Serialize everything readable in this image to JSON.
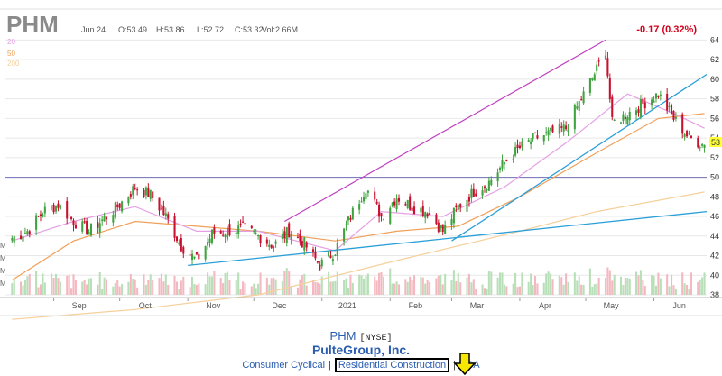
{
  "header": {
    "symbol": "PHM",
    "date": "Jun 24",
    "open": "O:53.49",
    "high": "H:53.86",
    "low": "L:52.72",
    "close": "C:53.32",
    "volume": "Vol:2.66M",
    "change": "-0.17 (0.32%)",
    "ma_labels": [
      "20",
      "50",
      "200"
    ],
    "last_price_label": "53"
  },
  "chart_data": {
    "type": "candlestick",
    "title": "PHM",
    "x_tick_labels": [
      "Sep",
      "Oct",
      "Nov",
      "Dec",
      "2021",
      "Feb",
      "Mar",
      "Apr",
      "May",
      "Jun"
    ],
    "y_tick_labels": [
      "38",
      "40",
      "42",
      "44",
      "46",
      "48",
      "50",
      "52",
      "54",
      "56",
      "58",
      "60",
      "62",
      "64"
    ],
    "ylim": [
      38,
      64.5
    ],
    "y_axis_side": "right",
    "grid": "horizontal",
    "volume_axis_labels": [
      "M",
      "M",
      "M",
      "M"
    ],
    "price_path": [
      [
        "Aug 13",
        43.8
      ],
      [
        "Aug 20",
        44.5
      ],
      [
        "Aug 27",
        46.5
      ],
      [
        "Sep 3",
        47.2
      ],
      [
        "Sep 10",
        45.5
      ],
      [
        "Sep 17",
        44.5
      ],
      [
        "Sep 24",
        45.8
      ],
      [
        "Oct 1",
        47.2
      ],
      [
        "Oct 8",
        49.0
      ],
      [
        "Oct 15",
        48.2
      ],
      [
        "Oct 22",
        46.0
      ],
      [
        "Oct 29",
        43.0
      ],
      [
        "Nov 5",
        41.5
      ],
      [
        "Nov 12",
        44.2
      ],
      [
        "Nov 19",
        44.5
      ],
      [
        "Nov 26",
        44.8
      ],
      [
        "Dec 3",
        44.0
      ],
      [
        "Dec 10",
        43.0
      ],
      [
        "Dec 17",
        44.5
      ],
      [
        "Dec 24",
        43.2
      ],
      [
        "Dec 31",
        41.0
      ],
      [
        "Jan 7",
        42.5
      ],
      [
        "Jan 14",
        46.0
      ],
      [
        "Jan 21",
        49.0
      ],
      [
        "Jan 28",
        46.0
      ],
      [
        "Feb 4",
        48.0
      ],
      [
        "Feb 11",
        47.0
      ],
      [
        "Feb 18",
        46.5
      ],
      [
        "Feb 25",
        44.5
      ],
      [
        "Mar 4",
        47.0
      ],
      [
        "Mar 11",
        48.5
      ],
      [
        "Mar 18",
        49.5
      ],
      [
        "Mar 25",
        51.5
      ],
      [
        "Apr 1",
        53.0
      ],
      [
        "Apr 8",
        54.0
      ],
      [
        "Apr 15",
        54.5
      ],
      [
        "Apr 22",
        55.0
      ],
      [
        "Apr 29",
        58.0
      ],
      [
        "May 6",
        61.0
      ],
      [
        "May 10",
        63.0
      ],
      [
        "May 13",
        55.5
      ],
      [
        "May 20",
        56.5
      ],
      [
        "May 27",
        57.5
      ],
      [
        "Jun 3",
        58.5
      ],
      [
        "Jun 10",
        56.0
      ],
      [
        "Jun 17",
        54.0
      ],
      [
        "Jun 24",
        53.3
      ]
    ],
    "overlays": {
      "horizontal_line": 50,
      "channel_upper": [
        [
          "Dec 15",
          45.5
        ],
        [
          "May 10",
          64.0
        ]
      ],
      "trend_lower": [
        [
          "Nov 1",
          41.0
        ],
        [
          "Jun 25",
          46.5
        ]
      ],
      "trend_steep": [
        [
          "Mar 1",
          43.5
        ],
        [
          "Jun 25",
          60.5
        ]
      ],
      "ma_20": [
        [
          "Aug 13",
          43.5
        ],
        [
          "Sep 10",
          45.5
        ],
        [
          "Oct 8",
          47.0
        ],
        [
          "Nov 5",
          44.5
        ],
        [
          "Dec 3",
          44.5
        ],
        [
          "Jan 7",
          42.5
        ],
        [
          "Jan 28",
          46.5
        ],
        [
          "Feb 25",
          46.0
        ],
        [
          "Mar 25",
          49.0
        ],
        [
          "Apr 22",
          53.5
        ],
        [
          "May 20",
          58.5
        ],
        [
          "Jun 10",
          56.5
        ],
        [
          "Jun 24",
          55.0
        ]
      ],
      "ma_50": [
        [
          "Aug 13",
          39.5
        ],
        [
          "Sep 10",
          43.5
        ],
        [
          "Oct 8",
          45.5
        ],
        [
          "Nov 5",
          45.0
        ],
        [
          "Dec 3",
          44.5
        ],
        [
          "Jan 7",
          43.5
        ],
        [
          "Feb 4",
          44.5
        ],
        [
          "Mar 4",
          45.0
        ],
        [
          "Apr 1",
          48.0
        ],
        [
          "May 6",
          52.5
        ],
        [
          "Jun 3",
          56.0
        ],
        [
          "Jun 24",
          56.5
        ]
      ],
      "ma_200": [
        [
          "Aug 13",
          35.5
        ],
        [
          "Oct 8",
          36.5
        ],
        [
          "Dec 3",
          38.0
        ],
        [
          "Feb 4",
          41.5
        ],
        [
          "Apr 1",
          44.5
        ],
        [
          "May 6",
          46.5
        ],
        [
          "Jun 24",
          48.5
        ]
      ]
    }
  },
  "footer": {
    "ticker": "PHM",
    "exchange": "[NYSE]",
    "company": "PulteGroup, Inc.",
    "sector": "Consumer Cyclical",
    "separator": "|",
    "industry": "Residential Construction",
    "country": "USA"
  },
  "colors": {
    "up": "#3fa33f",
    "down": "#c8102e",
    "ma20": "#e5a0e5",
    "ma50": "#f0a05a",
    "ma200": "#f5d09a",
    "channel": "#c040c0",
    "trend": "#2a9fd8",
    "hline": "#8080c0",
    "change": "#d0021b",
    "highlight_arrow": "#f6e600"
  }
}
